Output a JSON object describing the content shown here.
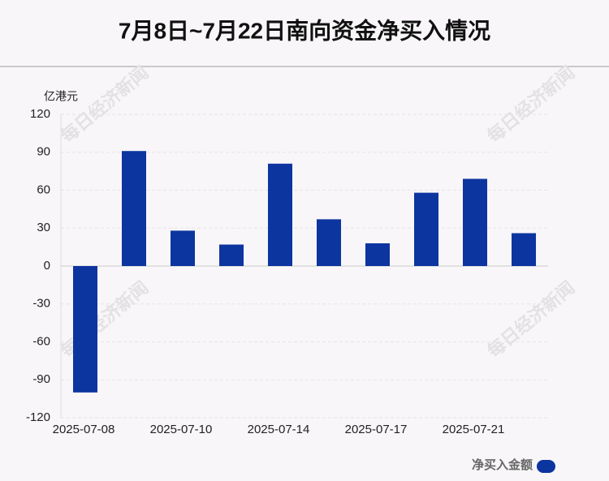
{
  "chart_data": {
    "type": "bar",
    "title": "7月8日~7月22日南向资金净买入情况",
    "y_label": "亿港元",
    "watermark": "每日经济新闻",
    "categories": [
      "2025-07-08",
      null,
      "2025-07-10",
      null,
      "2025-07-14",
      null,
      "2025-07-17",
      null,
      "2025-07-21",
      null
    ],
    "series": [
      {
        "name": "净买入金额",
        "color": "#0d35a0",
        "values": [
          -100,
          91,
          28,
          17,
          81,
          37,
          18,
          58,
          69,
          26
        ]
      }
    ],
    "ylim": [
      -120,
      120
    ],
    "yticks": [
      -120,
      -90,
      -60,
      -30,
      0,
      30,
      60,
      90,
      120
    ],
    "grid": true,
    "legend": "bottom-right"
  }
}
